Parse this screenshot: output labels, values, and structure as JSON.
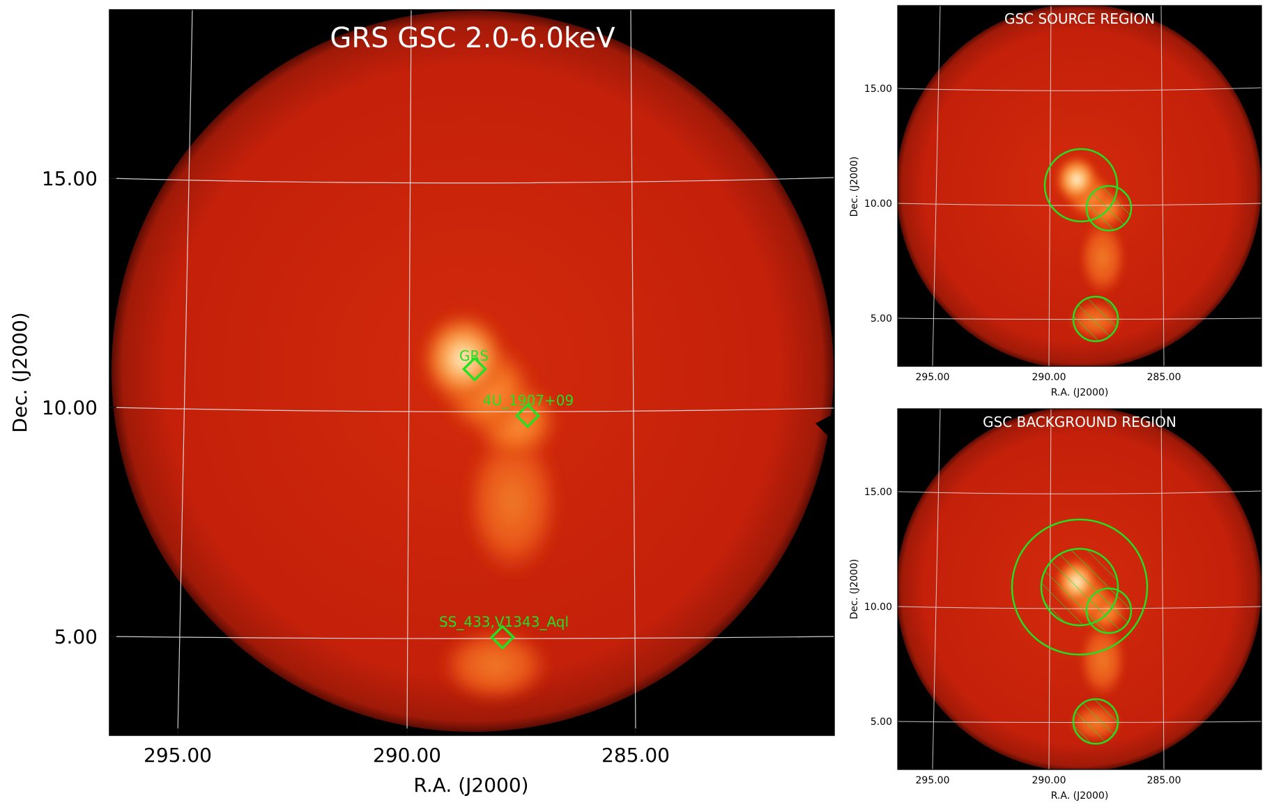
{
  "main": {
    "title": "GRS GSC 2.0-6.0keV",
    "xlabel": "R.A. (J2000)",
    "ylabel": "Dec. (J2000)",
    "xticks": [
      "295.00",
      "290.00",
      "285.00"
    ],
    "yticks": [
      "15.00",
      "10.00",
      "5.00"
    ],
    "sources": [
      {
        "name": "GRS"
      },
      {
        "name": "4U_1907+09"
      },
      {
        "name": "SS_433,V1343_Aql"
      }
    ]
  },
  "top_panel": {
    "title": "GSC SOURCE REGION",
    "xlabel": "R.A. (J2000)",
    "ylabel": "Dec. (J2000)",
    "xticks": [
      "295.00",
      "290.00",
      "285.00"
    ],
    "yticks": [
      "15.00",
      "10.00",
      "5.00"
    ]
  },
  "bottom_panel": {
    "title": "GSC BACKGROUND REGION",
    "xlabel": "R.A. (J2000)",
    "ylabel": "Dec. (J2000)",
    "xticks": [
      "295.00",
      "290.00",
      "285.00"
    ],
    "yticks": [
      "15.00",
      "10.00",
      "5.00"
    ]
  },
  "colors": {
    "background": "#000000",
    "disk": "#c8200a",
    "grid": "#e6e6e6",
    "region": "#22e022"
  }
}
